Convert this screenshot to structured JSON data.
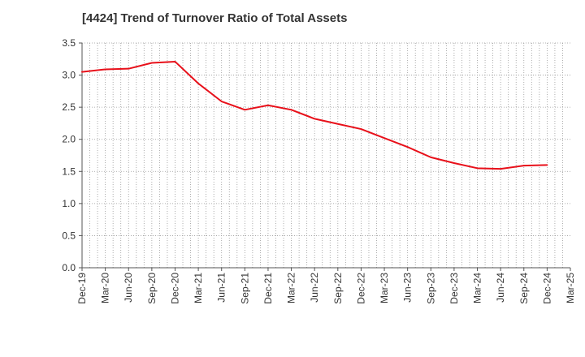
{
  "chart_data": {
    "type": "line",
    "title": "[4424]  Trend of Turnover Ratio of Total Assets",
    "xlabel": "",
    "ylabel": "",
    "ylim": [
      0,
      3.5
    ],
    "yticks": [
      "0.0",
      "0.5",
      "1.0",
      "1.5",
      "2.0",
      "2.5",
      "3.0",
      "3.5"
    ],
    "xtick_labels": [
      "Dec-19",
      "Mar-20",
      "Jun-20",
      "Sep-20",
      "Dec-20",
      "Mar-21",
      "Jun-21",
      "Sep-21",
      "Dec-21",
      "Mar-22",
      "Jun-22",
      "Sep-22",
      "Dec-22",
      "Mar-23",
      "Jun-23",
      "Sep-23",
      "Dec-23",
      "Mar-24",
      "Jun-24",
      "Sep-24",
      "Dec-24",
      "Mar-25"
    ],
    "grid": true,
    "colors": {
      "series": "#e8101a",
      "grid": "#999999",
      "axis": "#555555"
    },
    "series": [
      {
        "x": [
          "Dec-19",
          "Mar-20",
          "Jun-20",
          "Sep-20",
          "Dec-20",
          "Mar-21",
          "Jun-21",
          "Sep-21",
          "Dec-21",
          "Mar-22",
          "Jun-22",
          "Sep-22",
          "Dec-22",
          "Mar-23",
          "Jun-23",
          "Sep-23",
          "Dec-23",
          "Mar-24",
          "Jun-24",
          "Sep-24",
          "Dec-24"
        ],
        "values": [
          3.05,
          3.09,
          3.1,
          3.19,
          3.21,
          2.87,
          2.59,
          2.46,
          2.53,
          2.46,
          2.32,
          2.24,
          2.16,
          2.02,
          1.88,
          1.72,
          1.63,
          1.55,
          1.54,
          1.59,
          1.6
        ]
      }
    ]
  }
}
